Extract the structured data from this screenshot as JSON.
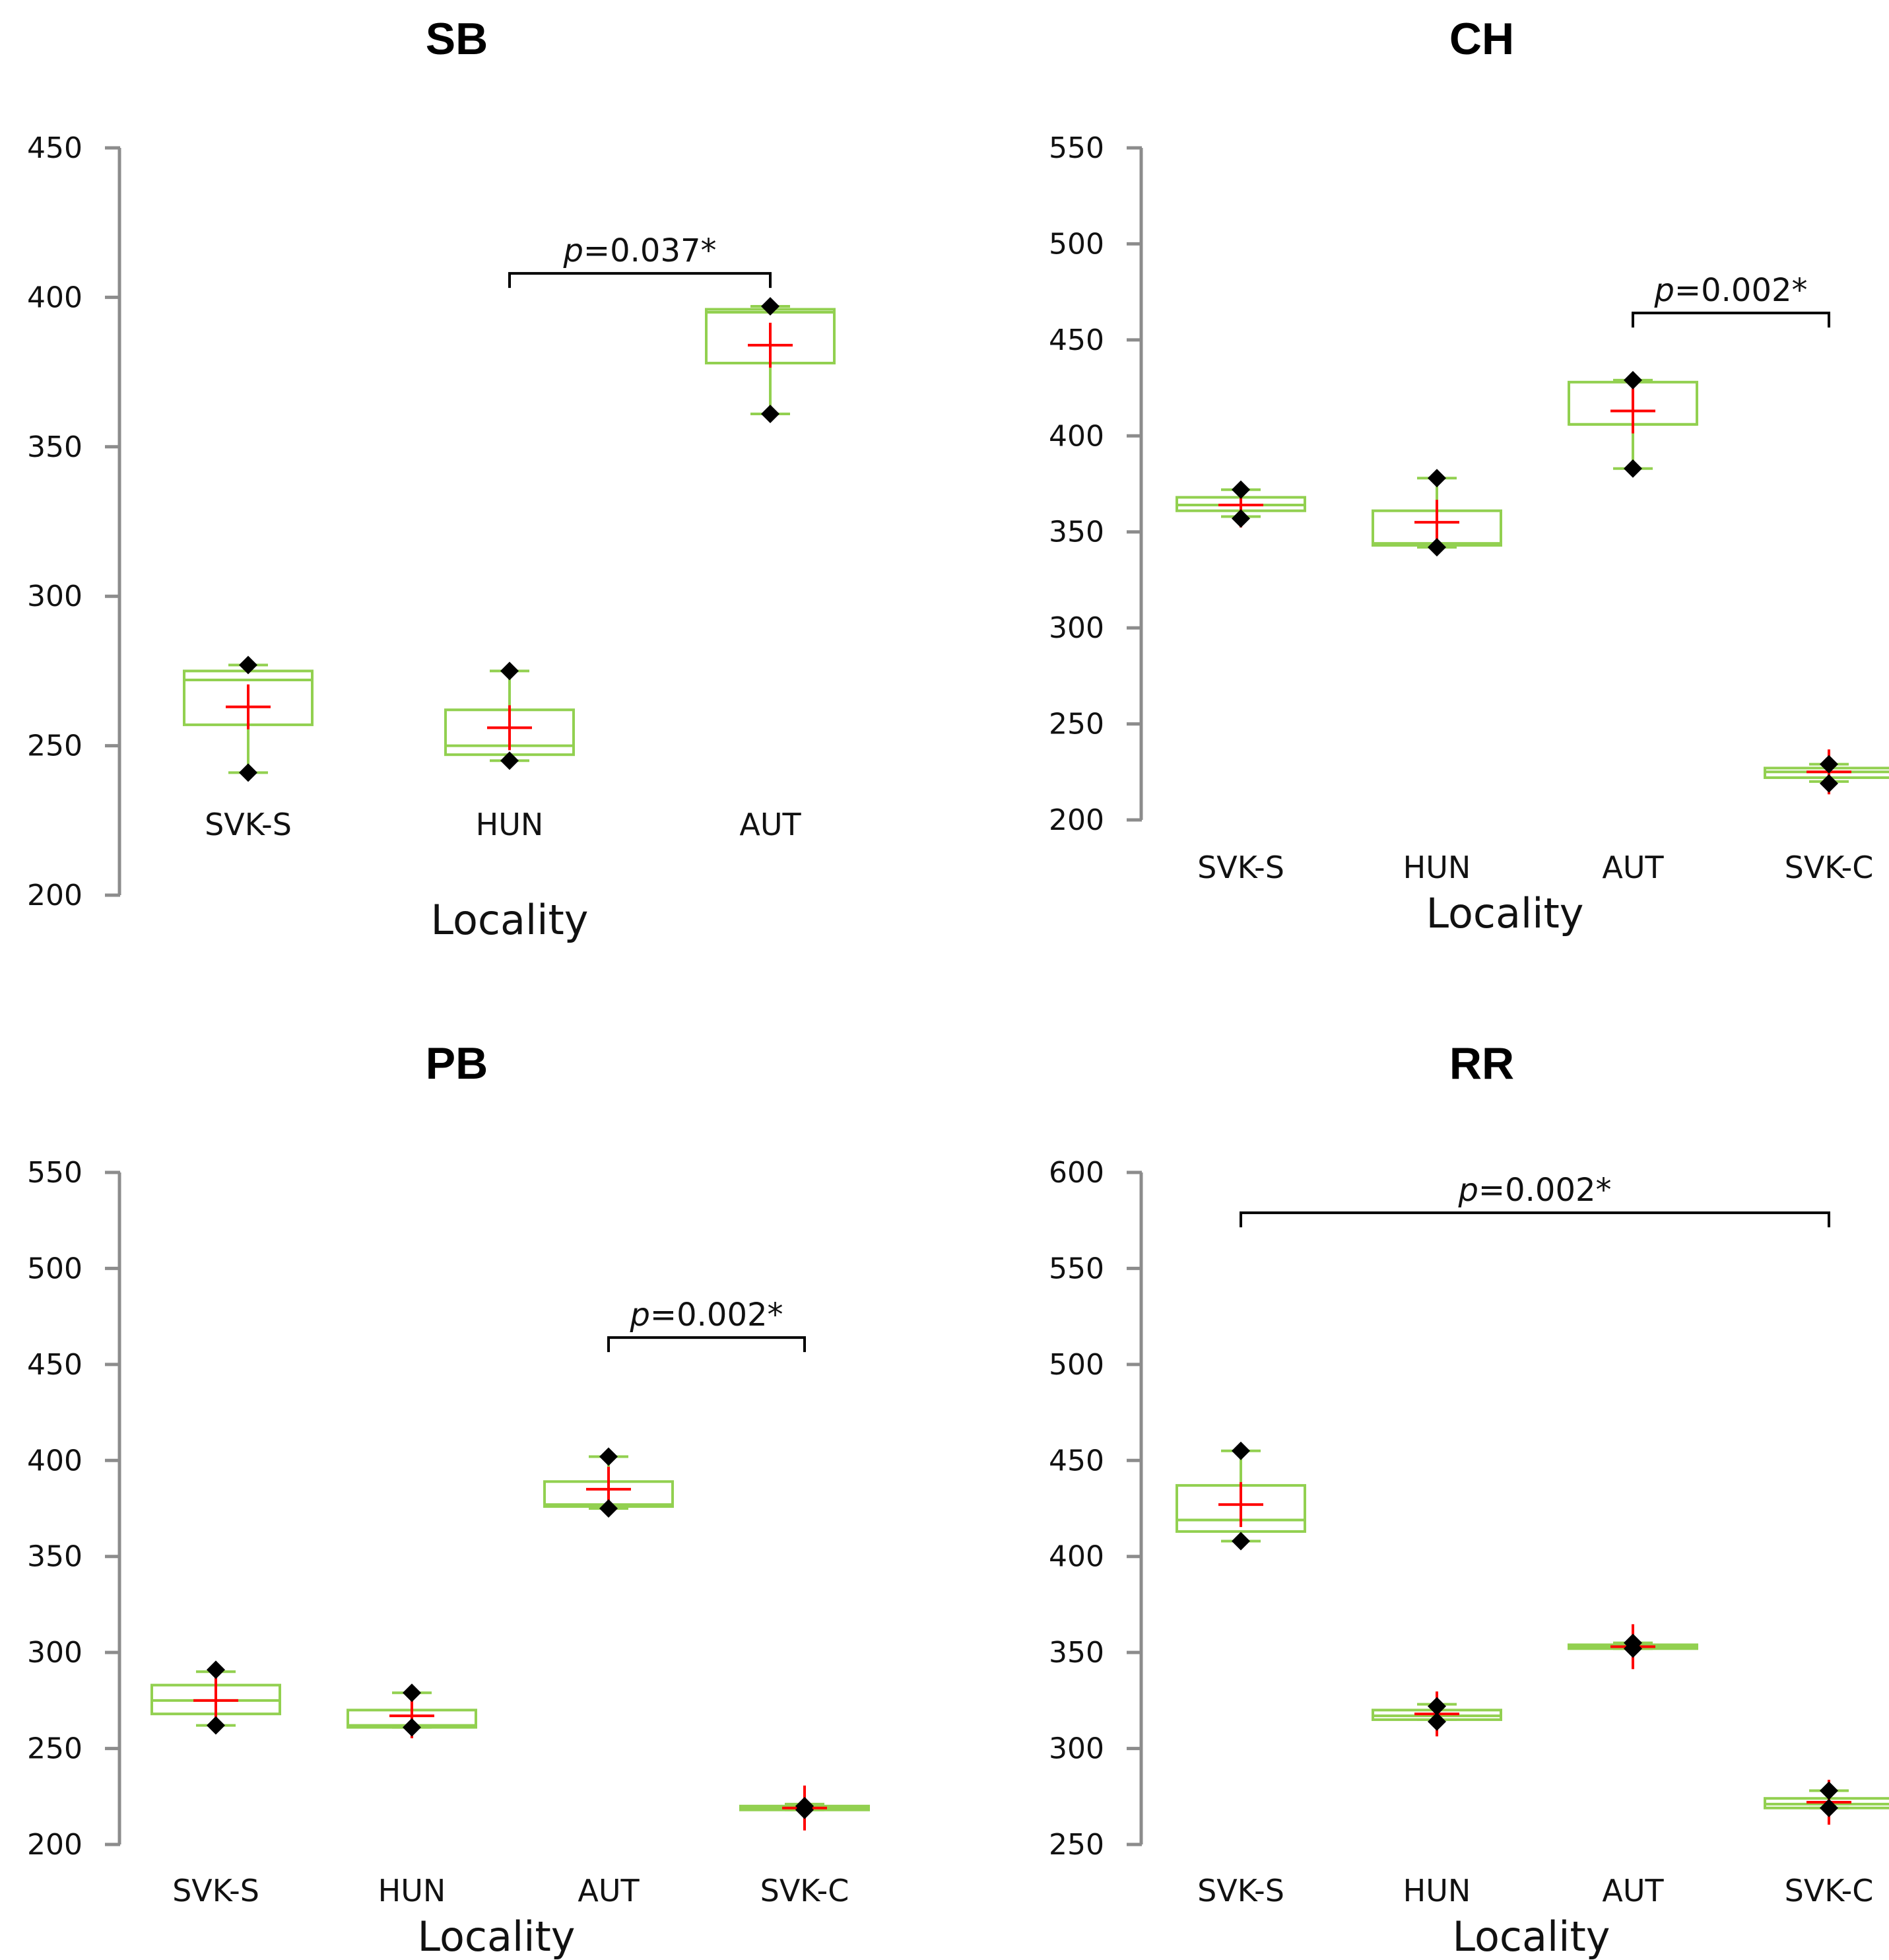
{
  "chart_data": [
    {
      "id": "SB",
      "type": "box",
      "title": "SB",
      "xlabel": "Locality",
      "ylabel": "",
      "ylim": [
        200,
        450
      ],
      "yticks": [
        200,
        250,
        300,
        350,
        400,
        450
      ],
      "categories": [
        "SVK-S",
        "HUN",
        "AUT"
      ],
      "boxes": [
        {
          "category": "SVK-S",
          "min": 241,
          "q1": 257,
          "median": 272,
          "q3": 275,
          "max": 277,
          "mean": 263,
          "points": [
            277,
            241
          ]
        },
        {
          "category": "HUN",
          "min": 245,
          "q1": 247,
          "median": 250,
          "q3": 262,
          "max": 275,
          "mean": 256,
          "points": [
            275,
            245
          ]
        },
        {
          "category": "AUT",
          "min": 361,
          "q1": 378,
          "median": 395,
          "q3": 396,
          "max": 397,
          "mean": 384,
          "points": [
            397,
            361
          ]
        }
      ],
      "annotations": [
        {
          "from": "HUN",
          "to": "AUT",
          "level": 408,
          "italic": "p",
          "text": "=0.037*"
        }
      ]
    },
    {
      "id": "CH",
      "type": "box",
      "title": "CH",
      "xlabel": "Locality",
      "ylabel": "",
      "ylim": [
        200,
        550
      ],
      "yticks": [
        200,
        250,
        300,
        350,
        400,
        450,
        500,
        550
      ],
      "categories": [
        "SVK-S",
        "HUN",
        "AUT",
        "SVK-C"
      ],
      "boxes": [
        {
          "category": "SVK-S",
          "min": 358,
          "q1": 361,
          "median": 364,
          "q3": 368,
          "max": 372,
          "mean": 364,
          "points": [
            372,
            357
          ]
        },
        {
          "category": "HUN",
          "min": 342,
          "q1": 343,
          "median": 344,
          "q3": 361,
          "max": 378,
          "mean": 355,
          "points": [
            378,
            342
          ]
        },
        {
          "category": "AUT",
          "min": 383,
          "q1": 406,
          "median": 406,
          "q3": 428,
          "max": 429,
          "mean": 413,
          "points": [
            429,
            383
          ]
        },
        {
          "category": "SVK-C",
          "min": 220,
          "q1": 222,
          "median": 225,
          "q3": 227,
          "max": 229,
          "mean": 225,
          "points": [
            229,
            219
          ]
        }
      ],
      "annotations": [
        {
          "from": "AUT",
          "to": "SVK-C",
          "level": 464,
          "italic": "p",
          "text": "=0.002*"
        }
      ]
    },
    {
      "id": "PB",
      "type": "box",
      "title": "PB",
      "xlabel": "Locality",
      "ylabel": "",
      "ylim": [
        200,
        550
      ],
      "yticks": [
        200,
        250,
        300,
        350,
        400,
        450,
        500,
        550
      ],
      "categories": [
        "SVK-S",
        "HUN",
        "AUT",
        "SVK-C"
      ],
      "boxes": [
        {
          "category": "SVK-S",
          "min": 262,
          "q1": 268,
          "median": 275,
          "q3": 283,
          "max": 290,
          "mean": 275,
          "points": [
            291,
            262
          ]
        },
        {
          "category": "HUN",
          "min": 261,
          "q1": 261,
          "median": 262,
          "q3": 270,
          "max": 279,
          "mean": 267,
          "points": [
            279,
            261
          ]
        },
        {
          "category": "AUT",
          "min": 375,
          "q1": 376,
          "median": 377,
          "q3": 389,
          "max": 402,
          "mean": 385,
          "points": [
            402,
            375
          ]
        },
        {
          "category": "SVK-C",
          "min": 218,
          "q1": 218,
          "median": 219,
          "q3": 220,
          "max": 221,
          "mean": 219,
          "points": [
            220,
            218
          ]
        }
      ],
      "annotations": [
        {
          "from": "AUT",
          "to": "SVK-C",
          "level": 464,
          "italic": "p",
          "text": "=0.002*"
        }
      ]
    },
    {
      "id": "RR",
      "type": "box",
      "title": "RR",
      "xlabel": "Locality",
      "ylabel": "",
      "ylim": [
        250,
        600
      ],
      "yticks": [
        250,
        300,
        350,
        400,
        450,
        500,
        550,
        600
      ],
      "categories": [
        "SVK-S",
        "HUN",
        "AUT",
        "SVK-C"
      ],
      "boxes": [
        {
          "category": "SVK-S",
          "min": 408,
          "q1": 413,
          "median": 419,
          "q3": 437,
          "max": 455,
          "mean": 427,
          "points": [
            455,
            408
          ]
        },
        {
          "category": "HUN",
          "min": 315,
          "q1": 315,
          "median": 317,
          "q3": 320,
          "max": 323,
          "mean": 318,
          "points": [
            322,
            314
          ]
        },
        {
          "category": "AUT",
          "min": 352,
          "q1": 352,
          "median": 353,
          "q3": 354,
          "max": 355,
          "mean": 353,
          "points": [
            355,
            352
          ]
        },
        {
          "category": "SVK-C",
          "min": 269,
          "q1": 269,
          "median": 271,
          "q3": 274,
          "max": 278,
          "mean": 272,
          "points": [
            278,
            269
          ]
        }
      ],
      "annotations": [
        {
          "from": "SVK-S",
          "to": "SVK-C",
          "level": 579,
          "italic": "p",
          "text": "=0.002*"
        }
      ]
    }
  ]
}
